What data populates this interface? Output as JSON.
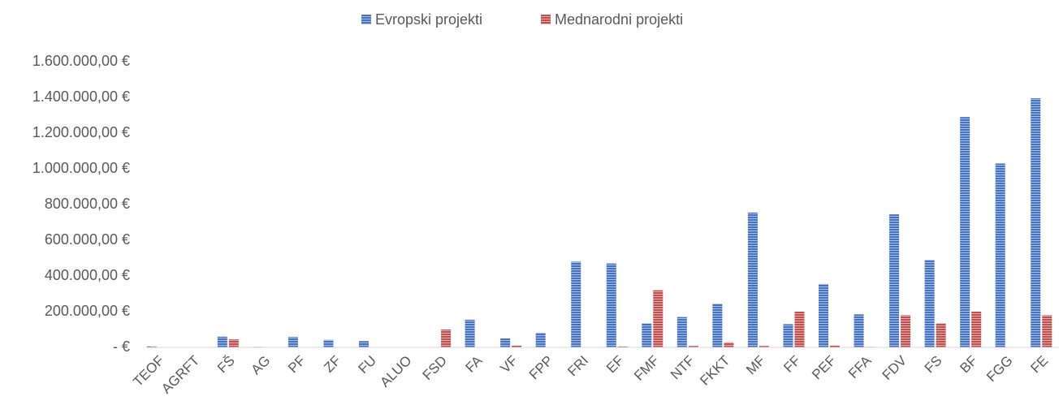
{
  "chart_data": {
    "type": "bar",
    "categories": [
      "TEOF",
      "AGRFT",
      "FŠ",
      "AG",
      "PF",
      "ZF",
      "FU",
      "ALUO",
      "FSD",
      "FA",
      "VF",
      "FPP",
      "FRI",
      "EF",
      "FMF",
      "NTF",
      "FKKT",
      "MF",
      "FF",
      "PEF",
      "FFA",
      "FDV",
      "FS",
      "BF",
      "FGG",
      "FE"
    ],
    "series": [
      {
        "name": "Evropski projekti",
        "color": "#4472c4",
        "values": [
          5000,
          2000,
          60000,
          3000,
          58000,
          42000,
          35000,
          2000,
          0,
          155000,
          50000,
          82000,
          480000,
          470000,
          135000,
          170000,
          245000,
          755000,
          130000,
          355000,
          185000,
          745000,
          490000,
          1290000,
          1030000,
          1395000
        ]
      },
      {
        "name": "Mednarodni projekti",
        "color": "#c0504d",
        "values": [
          0,
          2000,
          45000,
          2000,
          0,
          0,
          0,
          2000,
          100000,
          0,
          10000,
          0,
          0,
          5000,
          320000,
          8000,
          28000,
          8000,
          200000,
          10000,
          3000,
          180000,
          135000,
          200000,
          0,
          180000
        ]
      }
    ],
    "ylim": [
      0,
      1600000
    ],
    "yticks": [
      {
        "value": 0,
        "label": "-   €"
      },
      {
        "value": 200000,
        "label": "200.000,00 €"
      },
      {
        "value": 400000,
        "label": "400.000,00 €"
      },
      {
        "value": 600000,
        "label": "600.000,00 €"
      },
      {
        "value": 800000,
        "label": "800.000,00 €"
      },
      {
        "value": 1000000,
        "label": "1.000.000,00 €"
      },
      {
        "value": 1200000,
        "label": "1.200.000,00 €"
      },
      {
        "value": 1400000,
        "label": "1.400.000,00 €"
      },
      {
        "value": 1600000,
        "label": "1.600.000,00 €"
      }
    ],
    "grid": false,
    "legend": "top"
  }
}
